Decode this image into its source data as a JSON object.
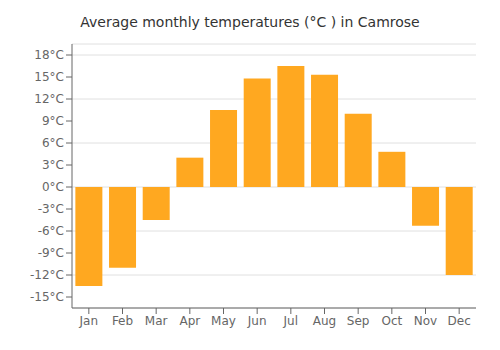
{
  "chart_data": {
    "type": "bar",
    "title": "Average monthly temperatures (°C ) in Camrose",
    "categories": [
      "Jan",
      "Feb",
      "Mar",
      "Apr",
      "May",
      "Jun",
      "Jul",
      "Aug",
      "Sep",
      "Oct",
      "Nov",
      "Dec"
    ],
    "values": [
      -13.5,
      -11.0,
      -4.5,
      4.0,
      10.5,
      14.8,
      16.5,
      15.3,
      10.0,
      4.8,
      -5.3,
      -12.0
    ],
    "color": "#FFA820",
    "ylim": [
      -16.5,
      19.5
    ],
    "yticks": [
      {
        "value": -15,
        "label": "-15°C"
      },
      {
        "value": -12,
        "label": "-12°C"
      },
      {
        "value": -9,
        "label": "-9°C"
      },
      {
        "value": -6,
        "label": "-6°C"
      },
      {
        "value": -3,
        "label": "-3°C"
      },
      {
        "value": 0,
        "label": "0°C"
      },
      {
        "value": 3,
        "label": "3°C"
      },
      {
        "value": 6,
        "label": "6°C"
      },
      {
        "value": 9,
        "label": "9°C"
      },
      {
        "value": 12,
        "label": "12°C"
      },
      {
        "value": 15,
        "label": "15°C"
      },
      {
        "value": 18,
        "label": "18°C"
      }
    ],
    "grid": true
  }
}
